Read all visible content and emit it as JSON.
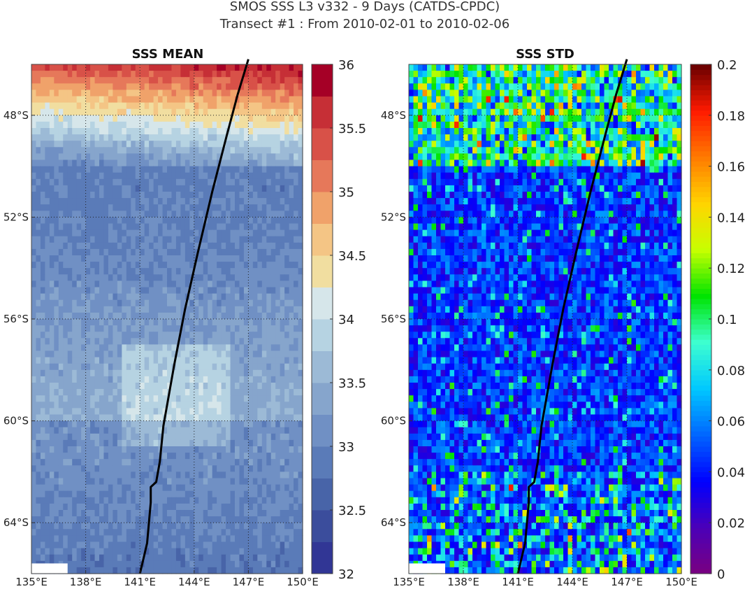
{
  "figure": {
    "title_line1": "SMOS SSS L3 v332 - 9 Days (CATDS-CPDC)",
    "title_line2": "Transect #1 : From 2010-02-01 to 2010-02-06"
  },
  "chart_data": [
    {
      "type": "heatmap",
      "title": "SSS MEAN",
      "xlim": [
        135,
        150
      ],
      "ylim": [
        -66,
        -46
      ],
      "x_ticks": [
        "135°E",
        "138°E",
        "141°E",
        "144°E",
        "147°E",
        "150°E"
      ],
      "y_ticks": [
        "48°S",
        "52°S",
        "56°S",
        "60°S",
        "64°S"
      ],
      "grid": true,
      "colorbar": {
        "range": [
          32,
          36
        ],
        "levels": 16,
        "ticks": [
          "32",
          "32.5",
          "33",
          "33.5",
          "34",
          "34.5",
          "35",
          "35.5",
          "36"
        ],
        "colors": [
          "#313695",
          "#3b4d9c",
          "#4864a8",
          "#5a7bb8",
          "#7090c4",
          "#86a5cc",
          "#9cbad6",
          "#b6d3e2",
          "#d6e6ea",
          "#f1dea0",
          "#f4c585",
          "#f0a26a",
          "#e6785a",
          "#d85148",
          "#c62f36",
          "#a50026"
        ]
      },
      "transect": {
        "lon": [
          141.0,
          141.2,
          141.4,
          141.6,
          141.6,
          141.9,
          142.1,
          142.3,
          142.9,
          143.5,
          144.2,
          145.0,
          145.8,
          146.4,
          147.0
        ],
        "lat": [
          -66.0,
          -65.4,
          -64.8,
          -63.2,
          -62.6,
          -62.4,
          -61.6,
          -60.2,
          -57.8,
          -55.6,
          -53.4,
          -51.0,
          -48.8,
          -47.2,
          -45.8
        ]
      }
    },
    {
      "type": "heatmap",
      "title": "SSS STD",
      "xlim": [
        135,
        150
      ],
      "ylim": [
        -66,
        -46
      ],
      "x_ticks": [
        "135°E",
        "138°E",
        "141°E",
        "144°E",
        "147°E",
        "150°E"
      ],
      "y_ticks": [
        "48°S",
        "52°S",
        "56°S",
        "60°S",
        "64°S"
      ],
      "grid": true,
      "colorbar": {
        "range": [
          0,
          0.2
        ],
        "levels": 0,
        "ticks": [
          "0",
          "0.02",
          "0.04",
          "0.06",
          "0.08",
          "0.1",
          "0.12",
          "0.14",
          "0.16",
          "0.18",
          "0.2"
        ],
        "colors": [
          "#7a0080",
          "#4b00b8",
          "#0000ff",
          "#0066ff",
          "#00c8ff",
          "#3dffd0",
          "#00e400",
          "#c8ff00",
          "#ffd400",
          "#ff7a00",
          "#ff1a00",
          "#660000"
        ]
      },
      "transect": {
        "lon": [
          141.0,
          141.2,
          141.4,
          141.6,
          141.6,
          141.9,
          142.1,
          142.3,
          142.9,
          143.5,
          144.2,
          145.0,
          145.8,
          146.4,
          147.0
        ],
        "lat": [
          -66.0,
          -65.4,
          -64.8,
          -63.2,
          -62.6,
          -62.4,
          -61.6,
          -60.2,
          -57.8,
          -55.6,
          -53.4,
          -51.0,
          -48.8,
          -47.2,
          -45.8
        ]
      }
    }
  ]
}
